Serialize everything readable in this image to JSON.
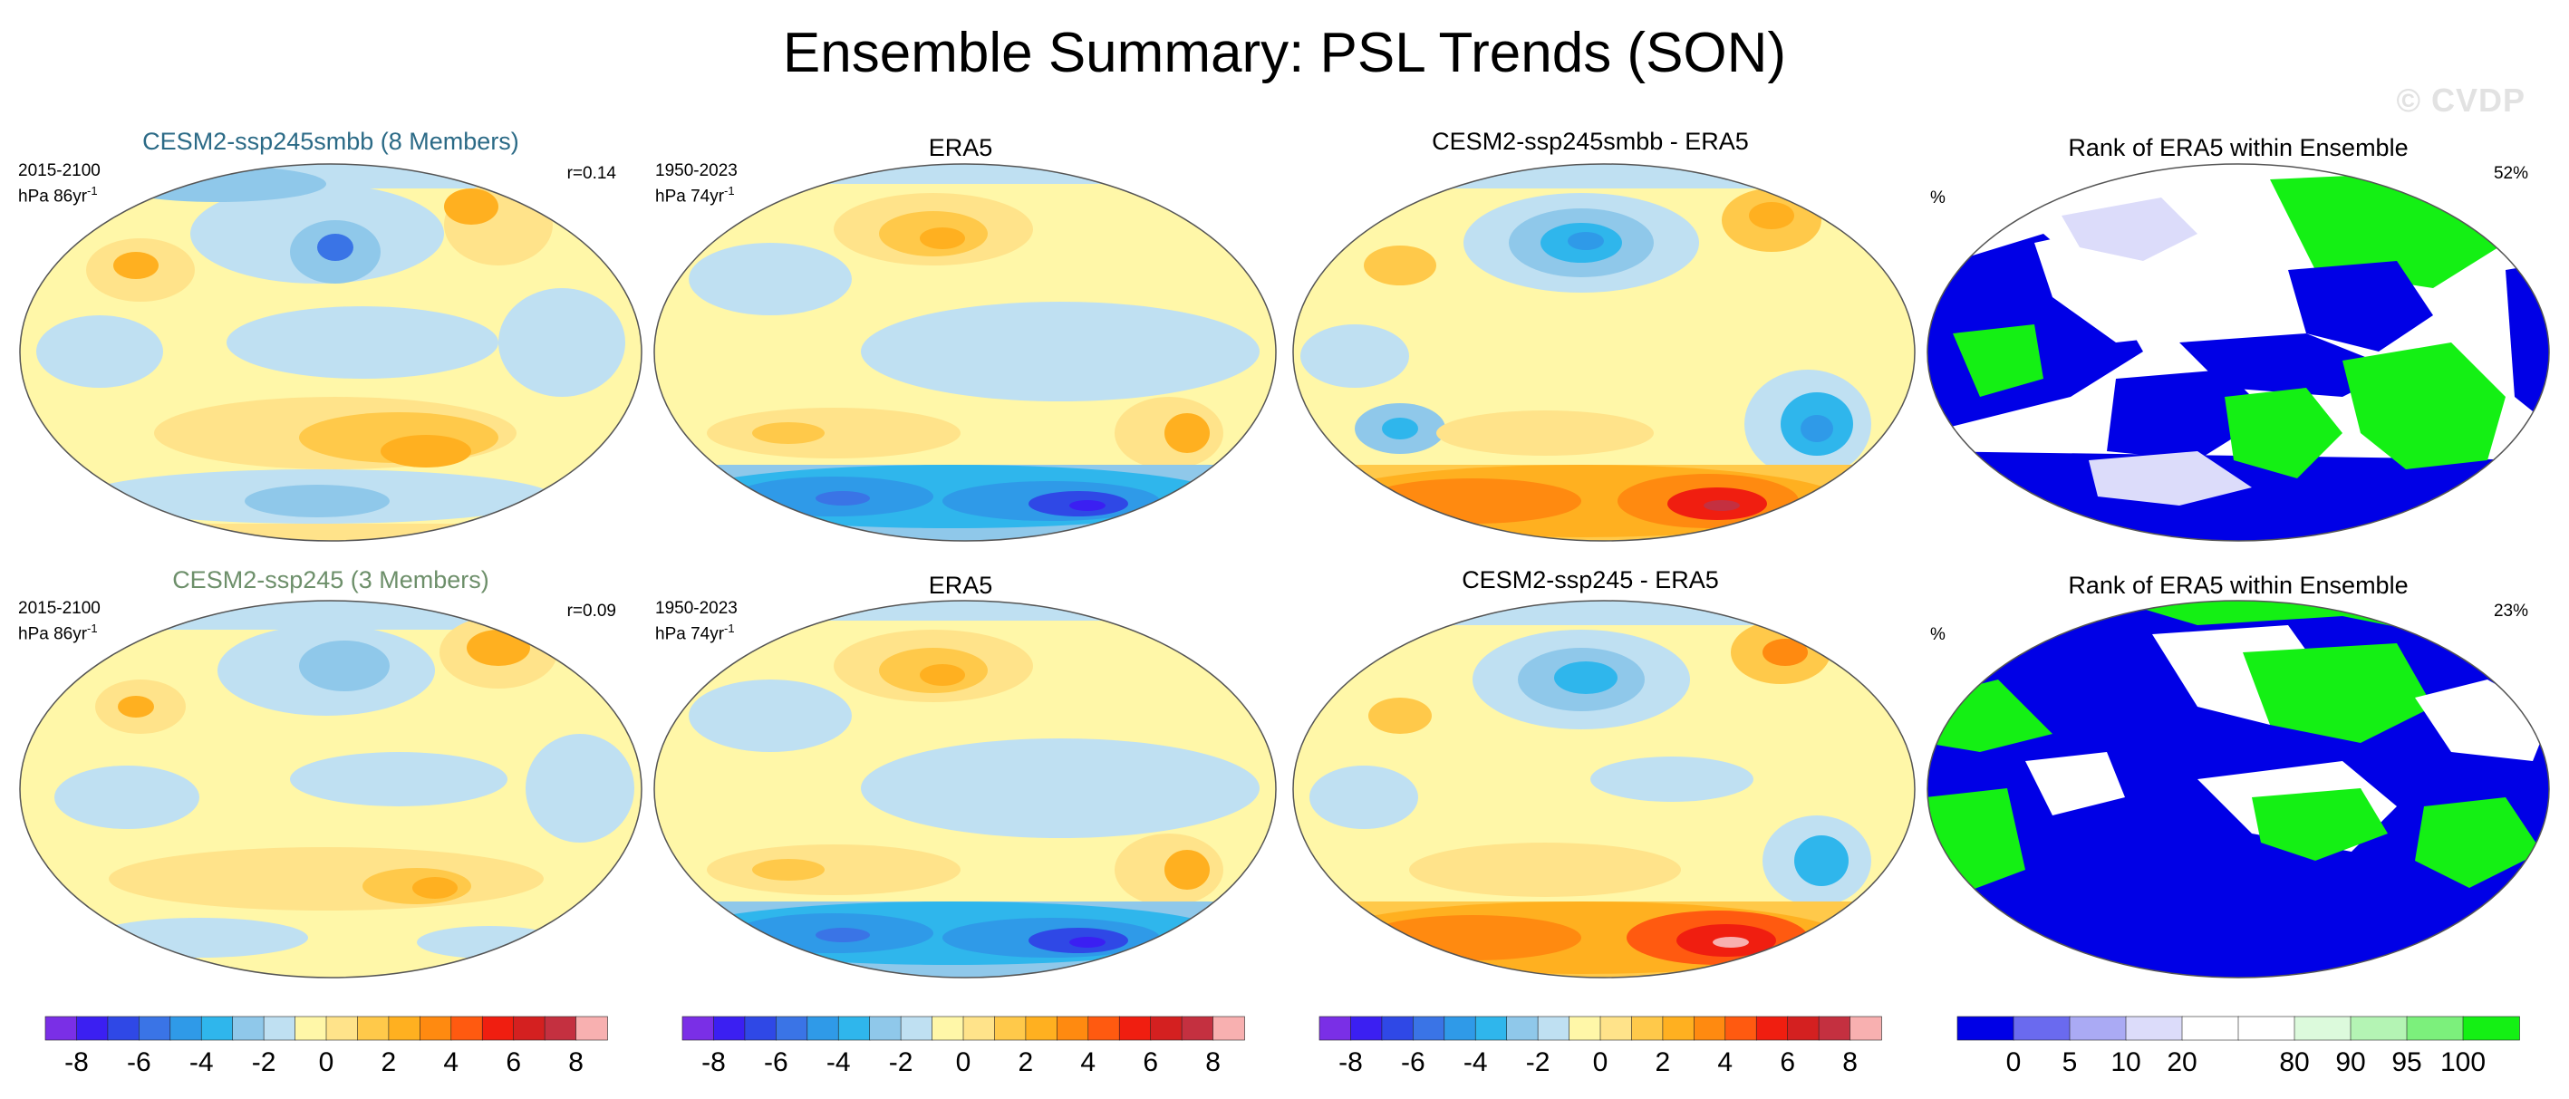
{
  "title": "Ensemble Summary: PSL Trends (SON)",
  "watermark": "© CVDP",
  "rows": [
    {
      "model_title": "CESM2-ssp245smbb (8 Members)",
      "model_title_color": "#2b6a86",
      "model_period": "2015-2100",
      "model_units": "hPa 86yr",
      "model_units_sup": "-1",
      "corr": "r=0.14",
      "obs_title": "ERA5",
      "obs_period": "1950-2023",
      "obs_units": "hPa 74yr",
      "obs_units_sup": "-1",
      "diff_title": "CESM2-ssp245smbb - ERA5",
      "rank_title": "Rank of ERA5 within Ensemble",
      "rank_units": "%",
      "rank_pct": "52%"
    },
    {
      "model_title": "CESM2-ssp245 (3 Members)",
      "model_title_color": "#6d8f6a",
      "model_period": "2015-2100",
      "model_units": "hPa 86yr",
      "model_units_sup": "-1",
      "corr": "r=0.09",
      "obs_title": "ERA5",
      "obs_period": "1950-2023",
      "obs_units": "hPa 74yr",
      "obs_units_sup": "-1",
      "diff_title": "CESM2-ssp245 - ERA5",
      "rank_title": "Rank of ERA5 within Ensemble",
      "rank_units": "%",
      "rank_pct": "23%"
    }
  ],
  "colorbar_trend": {
    "colors": [
      "#7a2fe6",
      "#3b1ff2",
      "#2f48e6",
      "#3a74e6",
      "#2f9ae8",
      "#2fb6ec",
      "#8fc8ea",
      "#bfe0f2",
      "#fff7a8",
      "#ffe38a",
      "#ffc94a",
      "#ffb020",
      "#ff8a10",
      "#ff5a10",
      "#f01e10",
      "#d42020",
      "#c43040",
      "#f8b0b0"
    ],
    "labels": [
      "-8",
      "-6",
      "-4",
      "-2",
      "0",
      "2",
      "4",
      "6",
      "8"
    ]
  },
  "colorbar_rank": {
    "colors": [
      "#0000e6",
      "#6a6aef",
      "#aaaaf4",
      "#dcdcfa",
      "#ffffff",
      "#ffffff",
      "#dcfadc",
      "#b4f4b4",
      "#7cf07c",
      "#14f014"
    ],
    "labels": [
      "0",
      "5",
      "10",
      "20",
      "80",
      "90",
      "95",
      "100"
    ]
  },
  "chart_data": {
    "type": "heatmap",
    "title": "Ensemble Summary: PSL Trends (SON)",
    "variable": "PSL",
    "season": "SON",
    "panels": [
      {
        "row": 1,
        "column": 1,
        "title": "CESM2-ssp245smbb (8 Members)",
        "period": "2015-2100",
        "units": "hPa 86yr-1",
        "pattern_correlation": 0.14
      },
      {
        "row": 1,
        "column": 2,
        "title": "ERA5",
        "period": "1950-2023",
        "units": "hPa 74yr-1"
      },
      {
        "row": 1,
        "column": 3,
        "title": "CESM2-ssp245smbb - ERA5"
      },
      {
        "row": 1,
        "column": 4,
        "title": "Rank of ERA5 within Ensemble",
        "units": "%",
        "value": "52%"
      },
      {
        "row": 2,
        "column": 1,
        "title": "CESM2-ssp245 (3 Members)",
        "period": "2015-2100",
        "units": "hPa 86yr-1",
        "pattern_correlation": 0.09
      },
      {
        "row": 2,
        "column": 2,
        "title": "ERA5",
        "period": "1950-2023",
        "units": "hPa 74yr-1"
      },
      {
        "row": 2,
        "column": 3,
        "title": "CESM2-ssp245 - ERA5"
      },
      {
        "row": 2,
        "column": 4,
        "title": "Rank of ERA5 within Ensemble",
        "units": "%",
        "value": "23%"
      }
    ],
    "trend_colorbar_ticks": [
      -8,
      -6,
      -4,
      -2,
      0,
      2,
      4,
      6,
      8
    ],
    "rank_colorbar_ticks": [
      0,
      5,
      10,
      20,
      80,
      90,
      95,
      100
    ]
  }
}
